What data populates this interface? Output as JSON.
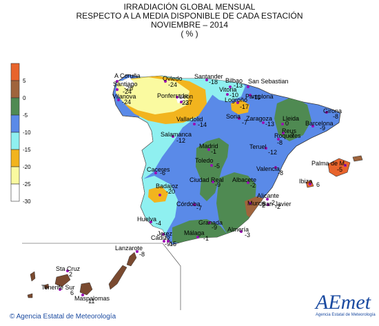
{
  "title": {
    "line1": "IRRADIACIÓN GLOBAL MENSUAL",
    "line2": "RESPECTO A LA MEDIA DISPONIBLE DE CADA ESTACIÓN",
    "line3": "NOVIEMBRE – 2014",
    "line4": "( % )"
  },
  "legend": {
    "bins": [
      {
        "label": "5",
        "color": "#e8642c"
      },
      {
        "label": "0",
        "color": "#a0643c"
      },
      {
        "label": "-5",
        "color": "#4f8a52"
      },
      {
        "label": "-10",
        "color": "#5a8ae8"
      },
      {
        "label": "-15",
        "color": "#8ff0f0"
      },
      {
        "label": "-20",
        "color": "#f2b41e"
      },
      {
        "label": "-25",
        "color": "#fafaa0"
      },
      {
        "label": "-30",
        "color": "#ffffff"
      }
    ]
  },
  "stations": [
    {
      "name": "A Coruña",
      "value": "-26"
    },
    {
      "name": "Santiago",
      "value": "-24"
    },
    {
      "name": "Vilanova",
      "value": "-24"
    },
    {
      "name": "Oviedo",
      "value": "-24"
    },
    {
      "name": "Ponferrada",
      "value": "-23"
    },
    {
      "name": "León",
      "value": "-27"
    },
    {
      "name": "Santander",
      "value": "-18"
    },
    {
      "name": "Bilbao",
      "value": "-13"
    },
    {
      "name": "San Sebastian",
      "value": ""
    },
    {
      "name": "Vitoria",
      "value": "-10"
    },
    {
      "name": "Pamplona",
      "value": "-11"
    },
    {
      "name": "Logroño",
      "value": "-17"
    },
    {
      "name": "Valladolid",
      "value": "-14"
    },
    {
      "name": "Soria",
      "value": "-7"
    },
    {
      "name": "Zaragoza",
      "value": "-13"
    },
    {
      "name": "Lleida",
      "value": "0"
    },
    {
      "name": "Girona",
      "value": "-8"
    },
    {
      "name": "Barcelona",
      "value": "-9"
    },
    {
      "name": "Reus",
      "value": "-7"
    },
    {
      "name": "Roquetes",
      "value": "-8"
    },
    {
      "name": "Salamanca",
      "value": "-12"
    },
    {
      "name": "Madrid",
      "value": "-1"
    },
    {
      "name": "Teruel",
      "value": "-12"
    },
    {
      "name": "Toledo",
      "value": "-5"
    },
    {
      "name": "Valencia",
      "value": "-8"
    },
    {
      "name": "Palma de M.",
      "value": "-5"
    },
    {
      "name": "Caceres",
      "value": "-6"
    },
    {
      "name": "Ciudad Real",
      "value": "-9"
    },
    {
      "name": "Albacete",
      "value": "-2"
    },
    {
      "name": "Ibiza",
      "value": "6"
    },
    {
      "name": "Badajoz",
      "value": "-20"
    },
    {
      "name": "Alicante",
      "value": "-2"
    },
    {
      "name": "Murcia",
      "value": "-2"
    },
    {
      "name": "San Javier",
      "value": "-2"
    },
    {
      "name": "Córdoba",
      "value": "-7"
    },
    {
      "name": "Huelva",
      "value": "-4"
    },
    {
      "name": "Granada",
      "value": "-9"
    },
    {
      "name": "Jerez",
      "value": "-2"
    },
    {
      "name": "Cádiz",
      "value": "-9"
    },
    {
      "name": "Sevilla",
      "value": "-15"
    },
    {
      "name": "Málaga",
      "value": "-1"
    },
    {
      "name": "Almería",
      "value": "-3"
    },
    {
      "name": "Lanzarote",
      "value": "-8"
    },
    {
      "name": "Sta Cruz",
      "value": "2"
    },
    {
      "name": "Tenerife Sur",
      "value": "6"
    },
    {
      "name": "Maspalomas",
      "value": "11"
    }
  ],
  "footer": {
    "agency": "Agencia Estatal de Meteorología",
    "logo_word": "AEmet",
    "logo_sub": "Agencia Estatal de Meteorología"
  }
}
